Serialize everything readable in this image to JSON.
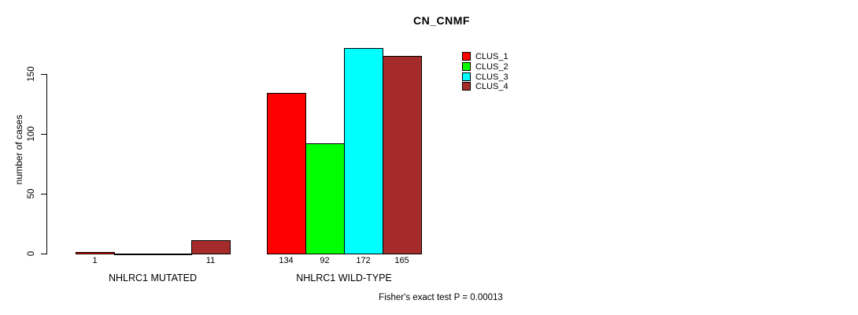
{
  "page": {
    "background": "#FFFFFF",
    "text_color": "#000000"
  },
  "chart_data": {
    "type": "bar",
    "title": "CN_CNMF",
    "ylabel": "number of cases",
    "xlabel": "",
    "ylim": [
      0,
      172
    ],
    "yticks": [
      0,
      50,
      100,
      150
    ],
    "grid": false,
    "legend_position": "top-right",
    "categories": [
      "NHLRC1 MUTATED",
      "NHLRC1 WILD-TYPE"
    ],
    "series": [
      {
        "name": "CLUS_1",
        "color": "#FF0000",
        "values": [
          1,
          134
        ]
      },
      {
        "name": "CLUS_2",
        "color": "#00FF00",
        "values": [
          0,
          92
        ]
      },
      {
        "name": "CLUS_3",
        "color": "#00FFFF",
        "values": [
          0,
          172
        ]
      },
      {
        "name": "CLUS_4",
        "color": "#A52A2A",
        "values": [
          11,
          165
        ]
      }
    ],
    "bar_value_labels": [
      [
        "1",
        "",
        "",
        "11"
      ],
      [
        "134",
        "92",
        "172",
        "165"
      ]
    ],
    "annotation": "Fisher's exact test P = 0.00013"
  }
}
